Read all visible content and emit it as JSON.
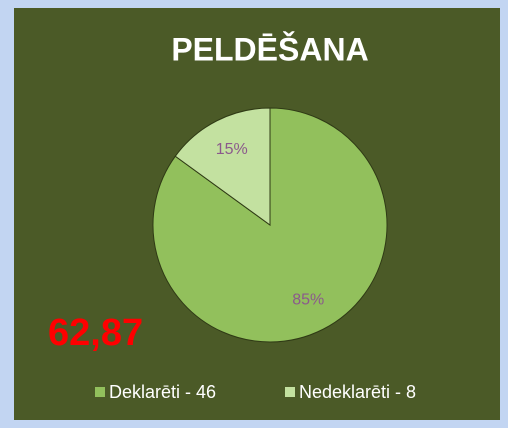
{
  "chart_data": {
    "type": "pie",
    "title": "PELDĒŠANA",
    "categories": [
      "Deklarēti - 46",
      "Nedeklarēti - 8"
    ],
    "values": [
      85,
      15
    ],
    "value_labels": [
      "85%",
      "15%"
    ],
    "colors": [
      "#92c05c",
      "#c3e1a0"
    ],
    "annotation": "62,87"
  }
}
